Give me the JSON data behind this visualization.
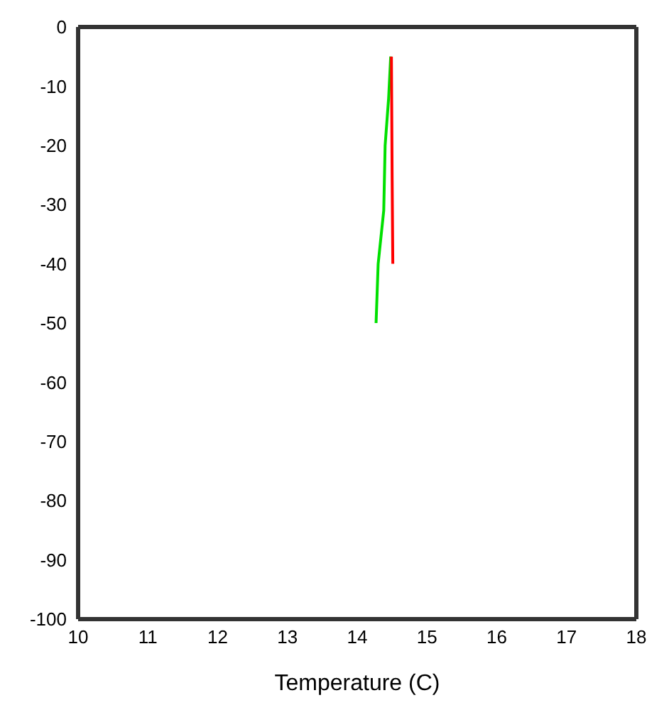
{
  "chart_data": {
    "type": "line",
    "xlabel": "Temperature (C)",
    "xlim": [
      10,
      18
    ],
    "xticks": [
      10,
      11,
      12,
      13,
      14,
      15,
      16,
      17,
      18
    ],
    "ylim": [
      -100,
      0
    ],
    "yticks": [
      -100,
      -90,
      -80,
      -70,
      -60,
      -50,
      -40,
      -30,
      -20,
      -10,
      0
    ],
    "marker": "none",
    "line_style": "solid",
    "series": [
      {
        "color": "#00e000",
        "x": [
          14.48,
          14.45,
          14.4,
          14.38,
          14.3,
          14.27
        ],
        "values": [
          -5,
          -12,
          -20,
          -31,
          -40,
          -50
        ]
      },
      {
        "color": "#ff0000",
        "x": [
          14.49,
          14.5,
          14.51
        ],
        "values": [
          -5,
          -25,
          -40
        ]
      }
    ]
  }
}
